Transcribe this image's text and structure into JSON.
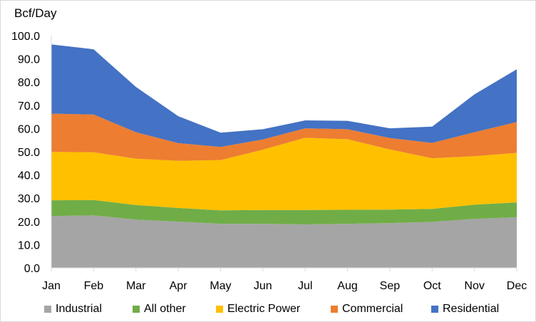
{
  "chart_data": {
    "type": "area",
    "stacked": true,
    "ylabel": "Bcf/Day",
    "xlabel": "",
    "title": "",
    "ylim": [
      0,
      100
    ],
    "yticks": [
      0,
      10,
      20,
      30,
      40,
      50,
      60,
      70,
      80,
      90,
      100
    ],
    "ytick_labels": [
      "0.0",
      "10.0",
      "20.0",
      "30.0",
      "40.0",
      "50.0",
      "60.0",
      "70.0",
      "80.0",
      "90.0",
      "100.0"
    ],
    "categories": [
      "Jan",
      "Feb",
      "Mar",
      "Apr",
      "May",
      "Jun",
      "Jul",
      "Aug",
      "Sep",
      "Oct",
      "Nov",
      "Dec"
    ],
    "legend_position": "bottom",
    "grid": false,
    "series": [
      {
        "name": "Industrial",
        "color": "#a5a5a5",
        "values": [
          22.3,
          22.6,
          20.8,
          19.9,
          19.0,
          19.0,
          18.7,
          19.0,
          19.3,
          19.8,
          21.1,
          21.8
        ]
      },
      {
        "name": "All other",
        "color": "#70ad47",
        "values": [
          6.8,
          6.6,
          6.3,
          5.9,
          5.8,
          5.9,
          6.2,
          6.0,
          5.8,
          5.6,
          6.1,
          6.4
        ]
      },
      {
        "name": "Electric Power",
        "color": "#ffc000",
        "values": [
          20.8,
          20.6,
          19.9,
          20.3,
          21.6,
          26.0,
          31.1,
          30.4,
          25.9,
          21.8,
          20.9,
          21.3
        ]
      },
      {
        "name": "Commercial",
        "color": "#ed7d31",
        "values": [
          16.5,
          16.2,
          11.4,
          7.6,
          5.7,
          4.4,
          4.1,
          4.3,
          4.9,
          6.6,
          10.3,
          13.3
        ]
      },
      {
        "name": "Residential",
        "color": "#4472c4",
        "values": [
          29.8,
          28.1,
          19.5,
          11.6,
          6.1,
          4.4,
          3.4,
          3.6,
          4.2,
          7.0,
          16.3,
          22.7
        ]
      }
    ]
  }
}
